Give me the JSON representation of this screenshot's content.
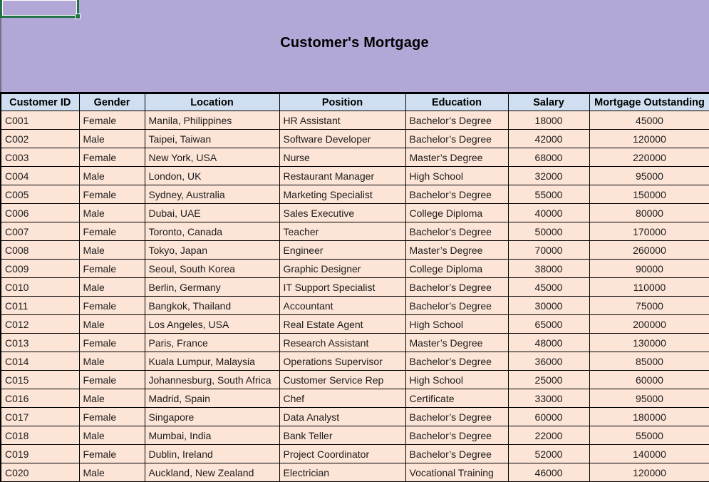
{
  "banner": {
    "title": "Customer's Mortgage"
  },
  "colors": {
    "banner_bg": "#b2a7d6",
    "header_bg": "#cfdff1",
    "row_bg": "#fce4d6",
    "selection_green": "#217346",
    "grid_border": "#000000"
  },
  "table": {
    "columns": [
      "Customer ID",
      "Gender",
      "Location",
      "Position",
      "Education",
      "Salary",
      "Mortgage Outstanding"
    ],
    "rows": [
      {
        "customer_id": "C001",
        "gender": "Female",
        "location": "Manila, Philippines",
        "position": "HR Assistant",
        "education": "Bachelor’s Degree",
        "salary": "18000",
        "mortgage_outstanding": "45000"
      },
      {
        "customer_id": "C002",
        "gender": "Male",
        "location": "Taipei, Taiwan",
        "position": "Software Developer",
        "education": "Bachelor’s Degree",
        "salary": "42000",
        "mortgage_outstanding": "120000"
      },
      {
        "customer_id": "C003",
        "gender": "Female",
        "location": "New York, USA",
        "position": "Nurse",
        "education": "Master’s Degree",
        "salary": "68000",
        "mortgage_outstanding": "220000"
      },
      {
        "customer_id": "C004",
        "gender": "Male",
        "location": "London, UK",
        "position": "Restaurant Manager",
        "education": "High School",
        "salary": "32000",
        "mortgage_outstanding": "95000"
      },
      {
        "customer_id": "C005",
        "gender": "Female",
        "location": "Sydney, Australia",
        "position": "Marketing Specialist",
        "education": "Bachelor’s Degree",
        "salary": "55000",
        "mortgage_outstanding": "150000"
      },
      {
        "customer_id": "C006",
        "gender": "Male",
        "location": "Dubai, UAE",
        "position": "Sales Executive",
        "education": "College Diploma",
        "salary": "40000",
        "mortgage_outstanding": "80000"
      },
      {
        "customer_id": "C007",
        "gender": "Female",
        "location": "Toronto, Canada",
        "position": "Teacher",
        "education": "Bachelor’s Degree",
        "salary": "50000",
        "mortgage_outstanding": "170000"
      },
      {
        "customer_id": "C008",
        "gender": "Male",
        "location": "Tokyo, Japan",
        "position": "Engineer",
        "education": "Master’s Degree",
        "salary": "70000",
        "mortgage_outstanding": "260000"
      },
      {
        "customer_id": "C009",
        "gender": "Female",
        "location": "Seoul, South Korea",
        "position": "Graphic Designer",
        "education": "College Diploma",
        "salary": "38000",
        "mortgage_outstanding": "90000"
      },
      {
        "customer_id": "C010",
        "gender": "Male",
        "location": "Berlin, Germany",
        "position": "IT Support Specialist",
        "education": "Bachelor’s Degree",
        "salary": "45000",
        "mortgage_outstanding": "110000"
      },
      {
        "customer_id": "C011",
        "gender": "Female",
        "location": "Bangkok, Thailand",
        "position": "Accountant",
        "education": "Bachelor’s Degree",
        "salary": "30000",
        "mortgage_outstanding": "75000"
      },
      {
        "customer_id": "C012",
        "gender": "Male",
        "location": "Los Angeles, USA",
        "position": "Real Estate Agent",
        "education": "High School",
        "salary": "65000",
        "mortgage_outstanding": "200000"
      },
      {
        "customer_id": "C013",
        "gender": "Female",
        "location": "Paris, France",
        "position": "Research Assistant",
        "education": "Master’s Degree",
        "salary": "48000",
        "mortgage_outstanding": "130000"
      },
      {
        "customer_id": "C014",
        "gender": "Male",
        "location": "Kuala Lumpur, Malaysia",
        "position": "Operations Supervisor",
        "education": "Bachelor’s Degree",
        "salary": "36000",
        "mortgage_outstanding": "85000"
      },
      {
        "customer_id": "C015",
        "gender": "Female",
        "location": "Johannesburg, South Africa",
        "position": "Customer Service Rep",
        "education": "High School",
        "salary": "25000",
        "mortgage_outstanding": "60000"
      },
      {
        "customer_id": "C016",
        "gender": "Male",
        "location": "Madrid, Spain",
        "position": "Chef",
        "education": "Certificate",
        "salary": "33000",
        "mortgage_outstanding": "95000"
      },
      {
        "customer_id": "C017",
        "gender": "Female",
        "location": "Singapore",
        "position": "Data Analyst",
        "education": "Bachelor’s Degree",
        "salary": "60000",
        "mortgage_outstanding": "180000"
      },
      {
        "customer_id": "C018",
        "gender": "Male",
        "location": "Mumbai, India",
        "position": "Bank Teller",
        "education": "Bachelor’s Degree",
        "salary": "22000",
        "mortgage_outstanding": "55000"
      },
      {
        "customer_id": "C019",
        "gender": "Female",
        "location": "Dublin, Ireland",
        "position": "Project Coordinator",
        "education": "Bachelor’s Degree",
        "salary": "52000",
        "mortgage_outstanding": "140000"
      },
      {
        "customer_id": "C020",
        "gender": "Male",
        "location": "Auckland, New Zealand",
        "position": "Electrician",
        "education": "Vocational Training",
        "salary": "46000",
        "mortgage_outstanding": "120000"
      }
    ]
  }
}
